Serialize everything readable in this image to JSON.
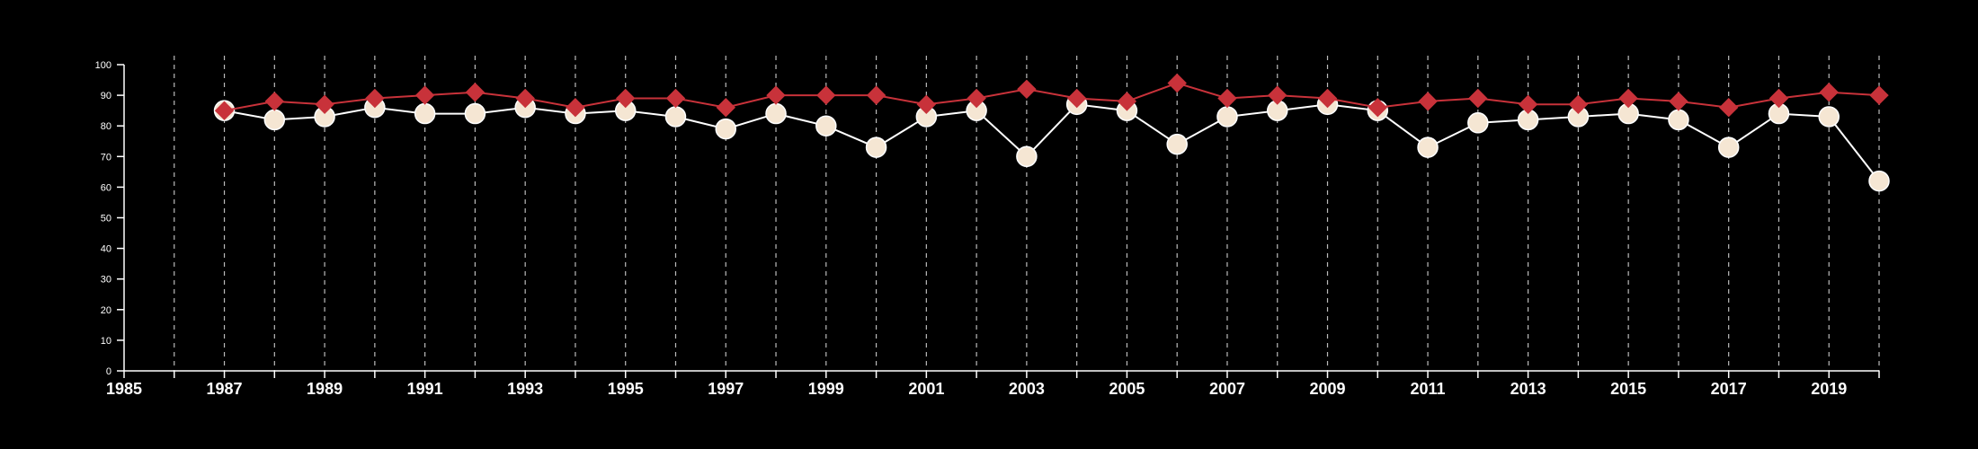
{
  "chart_data": {
    "type": "line",
    "title": "",
    "xlabel": "",
    "ylabel": "",
    "xlim": [
      1985,
      2020
    ],
    "ylim": [
      0,
      100
    ],
    "y_ticks": [
      0,
      10,
      20,
      30,
      40,
      50,
      60,
      70,
      80,
      90,
      100
    ],
    "x_tick_labels": [
      1985,
      1987,
      1989,
      1991,
      1993,
      1995,
      1997,
      1999,
      2001,
      2003,
      2005,
      2007,
      2009,
      2011,
      2013,
      2015,
      2017,
      2019
    ],
    "vertical_gridlines": "dashed, every year",
    "x": [
      1987,
      1988,
      1989,
      1990,
      1991,
      1992,
      1993,
      1994,
      1995,
      1996,
      1997,
      1998,
      1999,
      2000,
      2001,
      2002,
      2003,
      2004,
      2005,
      2006,
      2007,
      2008,
      2009,
      2010,
      2011,
      2012,
      2013,
      2014,
      2015,
      2016,
      2017,
      2018,
      2019,
      2020
    ],
    "series": [
      {
        "marker": "circle",
        "color": "#f5e6d3",
        "values": [
          85,
          82,
          83,
          86,
          84,
          84,
          86,
          84,
          85,
          83,
          79,
          84,
          80,
          73,
          83,
          85,
          70,
          87,
          85,
          74,
          83,
          85,
          87,
          85,
          73,
          81,
          82,
          83,
          84,
          82,
          73,
          84,
          83,
          62
        ]
      },
      {
        "marker": "diamond",
        "color": "#c8323a",
        "values": [
          85,
          88,
          87,
          89,
          90,
          91,
          89,
          86,
          89,
          89,
          86,
          90,
          90,
          90,
          87,
          89,
          92,
          89,
          88,
          94,
          89,
          90,
          89,
          86,
          88,
          89,
          87,
          87,
          89,
          88,
          86,
          89,
          91,
          90
        ]
      }
    ]
  }
}
